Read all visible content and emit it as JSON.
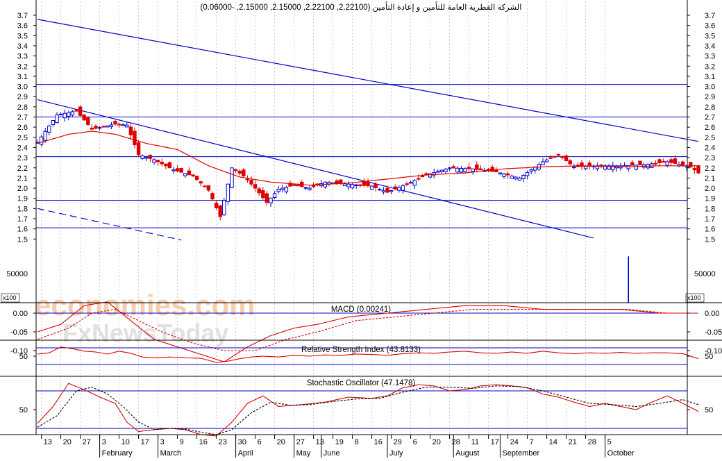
{
  "title": "الشركة القطرية العامة للتأمين و إعادة التأمين (2.22100, 2.22100, 2.15000, 2.15000, -0.06000)",
  "watermark": {
    "line1": "economies.com",
    "line2": "FxNewsToday"
  },
  "colors": {
    "background": "#ffffff",
    "axis": "#000000",
    "blue": "#0000cc",
    "red": "#dd0000",
    "grid": "#bfbfbf",
    "watermark1": "#f7c09a",
    "watermark2": "#d9d9d9"
  },
  "chart_data": [
    {
      "type": "candlestick",
      "panel": "price",
      "title": "الشركة القطرية العامة للتأمين و إعادة التأمين (2.22100, 2.22100, 2.15000, 2.15000, -0.06000)",
      "ylim": [
        1.46,
        3.78
      ],
      "y_ticks": [
        "3.7",
        "3.6",
        "3.5",
        "3.4",
        "3.3",
        "3.2",
        "3.1",
        "3.0",
        "2.9",
        "2.8",
        "2.7",
        "2.6",
        "2.5",
        "2.4",
        "2.3",
        "2.2",
        "2.1",
        "2.0",
        "1.9",
        "1.8",
        "1.7",
        "1.6",
        "1.5"
      ],
      "horizontal_levels": [
        3.02,
        2.7,
        2.31,
        1.88,
        1.61
      ],
      "trend_lines": [
        {
          "style": "solid",
          "from": [
            0,
            3.66
          ],
          "to": [
            170,
            2.46
          ]
        },
        {
          "style": "solid",
          "from": [
            0,
            2.87
          ],
          "to": [
            143,
            1.51
          ]
        },
        {
          "style": "dashed",
          "from": [
            0,
            1.8
          ],
          "to": [
            37,
            1.49
          ]
        }
      ],
      "moving_average_anchors": [
        [
          0,
          2.44
        ],
        [
          8,
          2.53
        ],
        [
          14,
          2.56
        ],
        [
          20,
          2.53
        ],
        [
          28,
          2.44
        ],
        [
          36,
          2.38
        ],
        [
          44,
          2.22
        ],
        [
          52,
          2.11
        ],
        [
          60,
          2.06
        ],
        [
          70,
          2.03
        ],
        [
          80,
          2.05
        ],
        [
          90,
          2.09
        ],
        [
          100,
          2.13
        ],
        [
          110,
          2.15
        ],
        [
          120,
          2.19
        ],
        [
          130,
          2.21
        ],
        [
          140,
          2.22
        ],
        [
          150,
          2.21
        ],
        [
          160,
          2.22
        ],
        [
          170,
          2.22
        ]
      ],
      "price_anchors": [
        [
          0,
          2.45
        ],
        [
          5,
          2.72
        ],
        [
          10,
          2.76
        ],
        [
          14,
          2.58
        ],
        [
          20,
          2.63
        ],
        [
          23,
          2.62
        ],
        [
          26,
          2.33
        ],
        [
          30,
          2.28
        ],
        [
          35,
          2.18
        ],
        [
          40,
          2.12
        ],
        [
          44,
          1.98
        ],
        [
          47,
          1.72
        ],
        [
          50,
          2.2
        ],
        [
          53,
          2.12
        ],
        [
          56,
          2.0
        ],
        [
          59,
          1.86
        ],
        [
          62,
          1.99
        ],
        [
          66,
          2.03
        ],
        [
          70,
          2.0
        ],
        [
          74,
          2.06
        ],
        [
          80,
          2.04
        ],
        [
          86,
          2.02
        ],
        [
          90,
          1.96
        ],
        [
          95,
          2.04
        ],
        [
          100,
          2.13
        ],
        [
          106,
          2.2
        ],
        [
          112,
          2.19
        ],
        [
          118,
          2.16
        ],
        [
          124,
          2.1
        ],
        [
          130,
          2.26
        ],
        [
          134,
          2.33
        ],
        [
          138,
          2.21
        ],
        [
          144,
          2.22
        ],
        [
          150,
          2.22
        ],
        [
          156,
          2.23
        ],
        [
          162,
          2.26
        ],
        [
          168,
          2.21
        ],
        [
          170,
          2.15
        ]
      ],
      "last_candle": {
        "open": 2.221,
        "high": 2.221,
        "low": 2.15,
        "close": 2.15,
        "change": -0.06
      }
    },
    {
      "type": "bar",
      "panel": "volume",
      "ylabel": "x100",
      "y_ticks": [
        "50000"
      ],
      "ylim": [
        0,
        90000
      ],
      "spike": {
        "day": 152,
        "value": 79000
      }
    },
    {
      "type": "line",
      "panel": "macd",
      "title": "MACD (0.00241)",
      "y_ticks": [
        "0.00",
        "-0.05",
        "-0.10"
      ],
      "ylim": [
        -0.13,
        0.04
      ],
      "zero_line": 0.0,
      "series": [
        {
          "name": "MACD",
          "anchors": [
            [
              0,
              -0.05
            ],
            [
              6,
              -0.03
            ],
            [
              12,
              0.02
            ],
            [
              18,
              0.03
            ],
            [
              24,
              -0.02
            ],
            [
              30,
              -0.07
            ],
            [
              36,
              -0.09
            ],
            [
              42,
              -0.11
            ],
            [
              48,
              -0.13
            ],
            [
              54,
              -0.09
            ],
            [
              60,
              -0.06
            ],
            [
              66,
              -0.04
            ],
            [
              72,
              -0.03
            ],
            [
              80,
              -0.01
            ],
            [
              90,
              0.0
            ],
            [
              100,
              0.01
            ],
            [
              110,
              0.02
            ],
            [
              120,
              0.02
            ],
            [
              130,
              0.01
            ],
            [
              140,
              0.01
            ],
            [
              150,
              0.01
            ],
            [
              160,
              0.0
            ],
            [
              170,
              0.0
            ]
          ]
        },
        {
          "name": "Signal",
          "anchors": [
            [
              0,
              -0.07
            ],
            [
              8,
              -0.04
            ],
            [
              14,
              0.0
            ],
            [
              20,
              0.01
            ],
            [
              26,
              -0.02
            ],
            [
              32,
              -0.05
            ],
            [
              40,
              -0.08
            ],
            [
              48,
              -0.1
            ],
            [
              56,
              -0.1
            ],
            [
              64,
              -0.07
            ],
            [
              72,
              -0.05
            ],
            [
              82,
              -0.02
            ],
            [
              92,
              -0.01
            ],
            [
              102,
              0.0
            ],
            [
              112,
              0.01
            ],
            [
              122,
              0.01
            ],
            [
              132,
              0.01
            ],
            [
              142,
              0.01
            ],
            [
              152,
              0.01
            ],
            [
              162,
              0.0
            ],
            [
              170,
              0.0
            ]
          ]
        }
      ]
    },
    {
      "type": "line",
      "panel": "rsi",
      "title": "Relative Strength Index (43.8133)",
      "y_ticks": [
        "50"
      ],
      "ylim": [
        15,
        85
      ],
      "levels": [
        70,
        30
      ],
      "series": [
        {
          "name": "RSI",
          "anchors": [
            [
              0,
              55
            ],
            [
              3,
              58
            ],
            [
              6,
              72
            ],
            [
              9,
              68
            ],
            [
              12,
              62
            ],
            [
              15,
              60
            ],
            [
              18,
              55
            ],
            [
              21,
              62
            ],
            [
              24,
              57
            ],
            [
              27,
              48
            ],
            [
              30,
              46
            ],
            [
              34,
              48
            ],
            [
              38,
              46
            ],
            [
              42,
              45
            ],
            [
              46,
              35
            ],
            [
              49,
              38
            ],
            [
              52,
              44
            ],
            [
              55,
              48
            ],
            [
              58,
              50
            ],
            [
              62,
              48
            ],
            [
              66,
              52
            ],
            [
              70,
              50
            ],
            [
              74,
              53
            ],
            [
              78,
              52
            ],
            [
              82,
              55
            ],
            [
              86,
              54
            ],
            [
              90,
              52
            ],
            [
              94,
              56
            ],
            [
              98,
              58
            ],
            [
              102,
              57
            ],
            [
              106,
              60
            ],
            [
              110,
              62
            ],
            [
              114,
              58
            ],
            [
              118,
              57
            ],
            [
              122,
              60
            ],
            [
              126,
              57
            ],
            [
              130,
              62
            ],
            [
              134,
              58
            ],
            [
              138,
              56
            ],
            [
              142,
              58
            ],
            [
              146,
              57
            ],
            [
              150,
              59
            ],
            [
              154,
              57
            ],
            [
              158,
              58
            ],
            [
              162,
              58
            ],
            [
              166,
              56
            ],
            [
              170,
              44
            ]
          ]
        }
      ]
    },
    {
      "type": "line",
      "panel": "stochastic",
      "title": "Stochastic Oscillator (47.1478)",
      "y_ticks": [
        "50"
      ],
      "ylim": [
        -5,
        105
      ],
      "levels": [
        80,
        20
      ],
      "series": [
        {
          "name": "%K",
          "anchors": [
            [
              0,
              28
            ],
            [
              4,
              55
            ],
            [
              8,
              92
            ],
            [
              12,
              82
            ],
            [
              16,
              70
            ],
            [
              20,
              60
            ],
            [
              23,
              30
            ],
            [
              26,
              15
            ],
            [
              30,
              18
            ],
            [
              34,
              20
            ],
            [
              38,
              18
            ],
            [
              42,
              10
            ],
            [
              46,
              8
            ],
            [
              50,
              30
            ],
            [
              54,
              60
            ],
            [
              58,
              72
            ],
            [
              62,
              55
            ],
            [
              68,
              58
            ],
            [
              74,
              62
            ],
            [
              80,
              70
            ],
            [
              86,
              68
            ],
            [
              90,
              72
            ],
            [
              94,
              85
            ],
            [
              98,
              90
            ],
            [
              102,
              88
            ],
            [
              106,
              80
            ],
            [
              110,
              82
            ],
            [
              114,
              88
            ],
            [
              118,
              90
            ],
            [
              122,
              88
            ],
            [
              126,
              85
            ],
            [
              130,
              75
            ],
            [
              134,
              70
            ],
            [
              138,
              62
            ],
            [
              142,
              55
            ],
            [
              146,
              60
            ],
            [
              150,
              55
            ],
            [
              154,
              50
            ],
            [
              158,
              62
            ],
            [
              162,
              72
            ],
            [
              166,
              60
            ],
            [
              170,
              47
            ]
          ]
        },
        {
          "name": "%D",
          "anchors": [
            [
              0,
              22
            ],
            [
              5,
              40
            ],
            [
              10,
              80
            ],
            [
              14,
              86
            ],
            [
              18,
              75
            ],
            [
              22,
              55
            ],
            [
              26,
              30
            ],
            [
              30,
              18
            ],
            [
              34,
              20
            ],
            [
              38,
              19
            ],
            [
              42,
              14
            ],
            [
              46,
              10
            ],
            [
              50,
              18
            ],
            [
              55,
              45
            ],
            [
              60,
              62
            ],
            [
              65,
              57
            ],
            [
              70,
              58
            ],
            [
              76,
              63
            ],
            [
              82,
              67
            ],
            [
              88,
              68
            ],
            [
              94,
              78
            ],
            [
              100,
              86
            ],
            [
              106,
              86
            ],
            [
              112,
              84
            ],
            [
              118,
              88
            ],
            [
              124,
              87
            ],
            [
              130,
              80
            ],
            [
              136,
              70
            ],
            [
              142,
              60
            ],
            [
              148,
              58
            ],
            [
              154,
              55
            ],
            [
              160,
              60
            ],
            [
              166,
              66
            ],
            [
              170,
              58
            ]
          ]
        }
      ]
    }
  ],
  "x_axis": {
    "day_ticks": [
      {
        "label": "13",
        "day": 1
      },
      {
        "label": "20",
        "day": 6
      },
      {
        "label": "27",
        "day": 11
      },
      {
        "label": "3",
        "day": 16
      },
      {
        "label": "10",
        "day": 21
      },
      {
        "label": "17",
        "day": 26
      },
      {
        "label": "3",
        "day": 31
      },
      {
        "label": "9",
        "day": 36
      },
      {
        "label": "16",
        "day": 41
      },
      {
        "label": "23",
        "day": 46
      },
      {
        "label": "30",
        "day": 51
      },
      {
        "label": "6",
        "day": 56
      },
      {
        "label": "20",
        "day": 61
      },
      {
        "label": "27",
        "day": 66
      },
      {
        "label": "13",
        "day": 71
      },
      {
        "label": "19",
        "day": 76
      },
      {
        "label": "8",
        "day": 81
      },
      {
        "label": "16",
        "day": 86
      },
      {
        "label": "29",
        "day": 91
      },
      {
        "label": "6",
        "day": 96
      },
      {
        "label": "20",
        "day": 101
      },
      {
        "label": "28",
        "day": 106
      },
      {
        "label": "11",
        "day": 111
      },
      {
        "label": "17",
        "day": 116
      },
      {
        "label": "24",
        "day": 121
      },
      {
        "label": "7",
        "day": 126
      },
      {
        "label": "14",
        "day": 131
      },
      {
        "label": "21",
        "day": 136
      },
      {
        "label": "28",
        "day": 141
      },
      {
        "label": "5",
        "day": 146
      }
    ],
    "months": [
      {
        "label": "February",
        "day": 16
      },
      {
        "label": "March",
        "day": 31
      },
      {
        "label": "April",
        "day": 51
      },
      {
        "label": "May",
        "day": 66
      },
      {
        "label": "June",
        "day": 73
      },
      {
        "label": "July",
        "day": 90
      },
      {
        "label": "August",
        "day": 107
      },
      {
        "label": "September",
        "day": 119
      },
      {
        "label": "October",
        "day": 146
      }
    ]
  }
}
